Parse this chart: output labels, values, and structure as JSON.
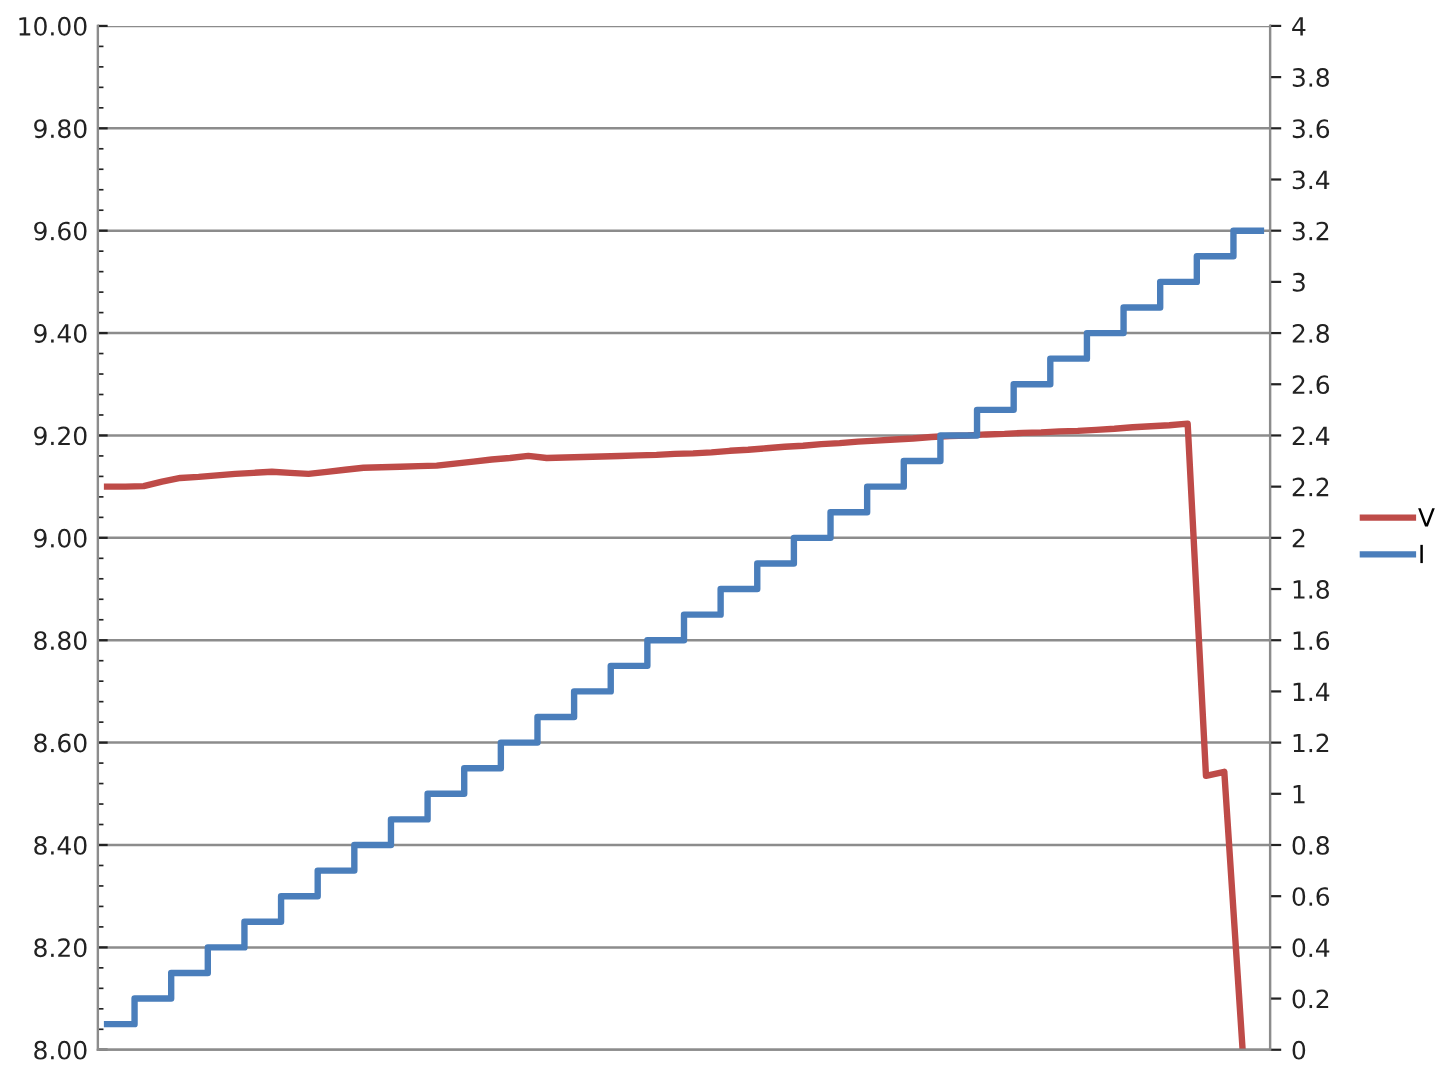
{
  "chart_data": {
    "type": "step",
    "categories": [
      null,
      null,
      null,
      null,
      null,
      null,
      null,
      null,
      null,
      null,
      null,
      null,
      null,
      null,
      null,
      null,
      null,
      null,
      null,
      null,
      null,
      null,
      null,
      null,
      null,
      null,
      null,
      null,
      null,
      null,
      null,
      null,
      null,
      null,
      null,
      null,
      null,
      null,
      null,
      null,
      null,
      null,
      null,
      null,
      null,
      null,
      null,
      null,
      null,
      null,
      null,
      null,
      null,
      null,
      null,
      null,
      null,
      null,
      null,
      null,
      null,
      null,
      null,
      null
    ],
    "series": [
      {
        "name": "V",
        "color": "#be4b48",
        "type": "line",
        "values": [
          9.1,
          9.1,
          9.101,
          9.11,
          9.117,
          9.119,
          9.122,
          9.125,
          9.127,
          9.129,
          9.127,
          9.125,
          9.129,
          9.133,
          9.137,
          9.138,
          9.139,
          9.14,
          9.141,
          9.145,
          9.149,
          9.153,
          9.156,
          9.16,
          9.156,
          9.157,
          9.158,
          9.159,
          9.16,
          9.161,
          9.162,
          9.164,
          9.165,
          9.167,
          9.17,
          9.172,
          9.175,
          9.178,
          9.18,
          9.183,
          9.185,
          9.188,
          9.19,
          9.192,
          9.194,
          9.197,
          9.199,
          9.2,
          9.202,
          9.203,
          9.205,
          9.206,
          9.208,
          9.209,
          9.211,
          9.213,
          9.216,
          9.218,
          9.22,
          9.223,
          8.535,
          8.543,
          8.0,
          null
        ]
      },
      {
        "name": "I",
        "color": "#4a7ebb",
        "axis": "y2",
        "values": [
          0.1,
          0.1,
          0.2,
          0.2,
          0.3,
          0.3,
          0.4,
          0.4,
          0.5,
          0.5,
          0.6,
          0.6,
          0.7,
          0.7,
          0.8,
          0.8,
          0.9,
          0.9,
          1.0,
          1.0,
          1.1,
          1.1,
          1.2,
          1.2,
          1.3,
          1.3,
          1.4,
          1.4,
          1.5,
          1.5,
          1.6,
          1.6,
          1.7,
          1.7,
          1.8,
          1.8,
          1.9,
          1.9,
          2.0,
          2.0,
          2.1,
          2.1,
          2.2,
          2.2,
          2.3,
          2.3,
          2.4,
          2.4,
          2.5,
          2.5,
          2.6,
          2.6,
          2.7,
          2.7,
          2.8,
          2.8,
          2.9,
          2.9,
          3.0,
          3.0,
          3.1,
          3.1,
          3.2,
          3.2
        ]
      }
    ],
    "ylim": [
      8,
      10
    ],
    "yticks": [
      {
        "value": 8,
        "label": "8.00"
      },
      {
        "value": 8.2,
        "label": "8.20"
      },
      {
        "value": 8.4,
        "label": "8.40"
      },
      {
        "value": 8.6,
        "label": "8.60"
      },
      {
        "value": 8.8,
        "label": "8.80"
      },
      {
        "value": 9,
        "label": "9.00"
      },
      {
        "value": 9.2,
        "label": "9.20"
      },
      {
        "value": 9.4,
        "label": "9.40"
      },
      {
        "value": 9.6,
        "label": "9.60"
      },
      {
        "value": 9.8,
        "label": "9.80"
      },
      {
        "value": 10,
        "label": "10.00"
      }
    ],
    "y2lim": [
      0,
      4
    ],
    "y2ticks": [
      0,
      0.2,
      0.4,
      0.6,
      0.8,
      1,
      1.2,
      1.4,
      1.6,
      1.8,
      2,
      2.2,
      2.4,
      2.6,
      2.8,
      3,
      3.2,
      3.4,
      3.6,
      3.8,
      4
    ],
    "grid": "y",
    "legend": "right"
  }
}
